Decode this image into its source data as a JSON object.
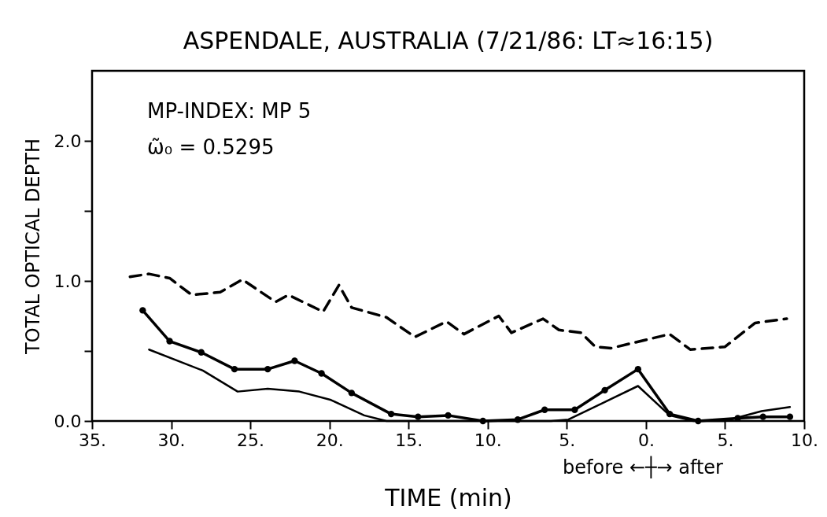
{
  "chart_data": {
    "type": "line",
    "title": "ASPENDALE, AUSTRALIA  (7/21/86: LT≈16:15)",
    "xlabel": "TIME (min)",
    "ylabel": "TOTAL OPTICAL DEPTH",
    "xlim": [
      -35,
      10
    ],
    "ylim": [
      0,
      2.5
    ],
    "xticks": [
      {
        "value": -35,
        "label": "35."
      },
      {
        "value": -30,
        "label": "30."
      },
      {
        "value": -25,
        "label": "25."
      },
      {
        "value": -20,
        "label": "20."
      },
      {
        "value": -15,
        "label": "15."
      },
      {
        "value": -10,
        "label": "10."
      },
      {
        "value": -5,
        "label": "5."
      },
      {
        "value": 0,
        "label": "0."
      },
      {
        "value": 5,
        "label": "5."
      },
      {
        "value": 10,
        "label": "10."
      }
    ],
    "yticks": [
      {
        "value": 0,
        "label": "0.0"
      },
      {
        "value": 0.5,
        "label": null
      },
      {
        "value": 1,
        "label": "1.0"
      },
      {
        "value": 1.5,
        "label": null
      },
      {
        "value": 2,
        "label": "2.0"
      }
    ],
    "grid": false,
    "annotations": [
      "MP-INDEX: MP 5",
      "ω̃₀ = 0.5295",
      "before ←┼→ after"
    ],
    "series": [
      {
        "color": "#000000",
        "line_style": "dashed",
        "marker": "none",
        "x": [
          -32.6,
          -31.4,
          -30.1,
          -28.7,
          -26.9,
          -25.5,
          -23.4,
          -22.6,
          -20.4,
          -19.4,
          -18.6,
          -16.4,
          -14.6,
          -12.6,
          -11.5,
          -9.3,
          -8.5,
          -6.5,
          -5.5,
          -4.1,
          -3.2,
          -2.2,
          1.5,
          2.8,
          5.0,
          6.9,
          8.9
        ],
        "values": [
          1.03,
          1.05,
          1.02,
          0.9,
          0.92,
          1.01,
          0.85,
          0.9,
          0.78,
          0.97,
          0.81,
          0.74,
          0.6,
          0.71,
          0.62,
          0.75,
          0.63,
          0.73,
          0.65,
          0.63,
          0.53,
          0.52,
          0.62,
          0.51,
          0.53,
          0.7,
          0.73
        ]
      },
      {
        "color": "#000000",
        "line_style": "solid",
        "marker": "circle",
        "x": [
          -31.8,
          -30.1,
          -28.1,
          -26.0,
          -23.9,
          -22.2,
          -20.5,
          -18.6,
          -16.1,
          -14.4,
          -12.5,
          -10.3,
          -8.1,
          -6.4,
          -4.5,
          -2.6,
          -0.5,
          1.5,
          3.3,
          5.8,
          7.4,
          9.1
        ],
        "values": [
          0.79,
          0.57,
          0.49,
          0.37,
          0.37,
          0.43,
          0.34,
          0.2,
          0.05,
          0.03,
          0.04,
          0.0,
          0.01,
          0.08,
          0.08,
          0.22,
          0.37,
          0.05,
          0.0,
          0.02,
          0.03,
          0.03
        ]
      },
      {
        "color": "#000000",
        "line_style": "solid",
        "marker": "none",
        "x": [
          -31.4,
          -28.0,
          -25.8,
          -23.9,
          -21.9,
          -19.9,
          -17.8,
          -16.4,
          -6.0,
          -4.9,
          -0.5,
          1.5,
          3.0,
          5.0,
          7.3,
          9.1
        ],
        "values": [
          0.51,
          0.36,
          0.21,
          0.23,
          0.21,
          0.15,
          0.04,
          0.0,
          0.0,
          0.01,
          0.25,
          0.04,
          0.0,
          0.0,
          0.07,
          0.1
        ]
      }
    ]
  }
}
